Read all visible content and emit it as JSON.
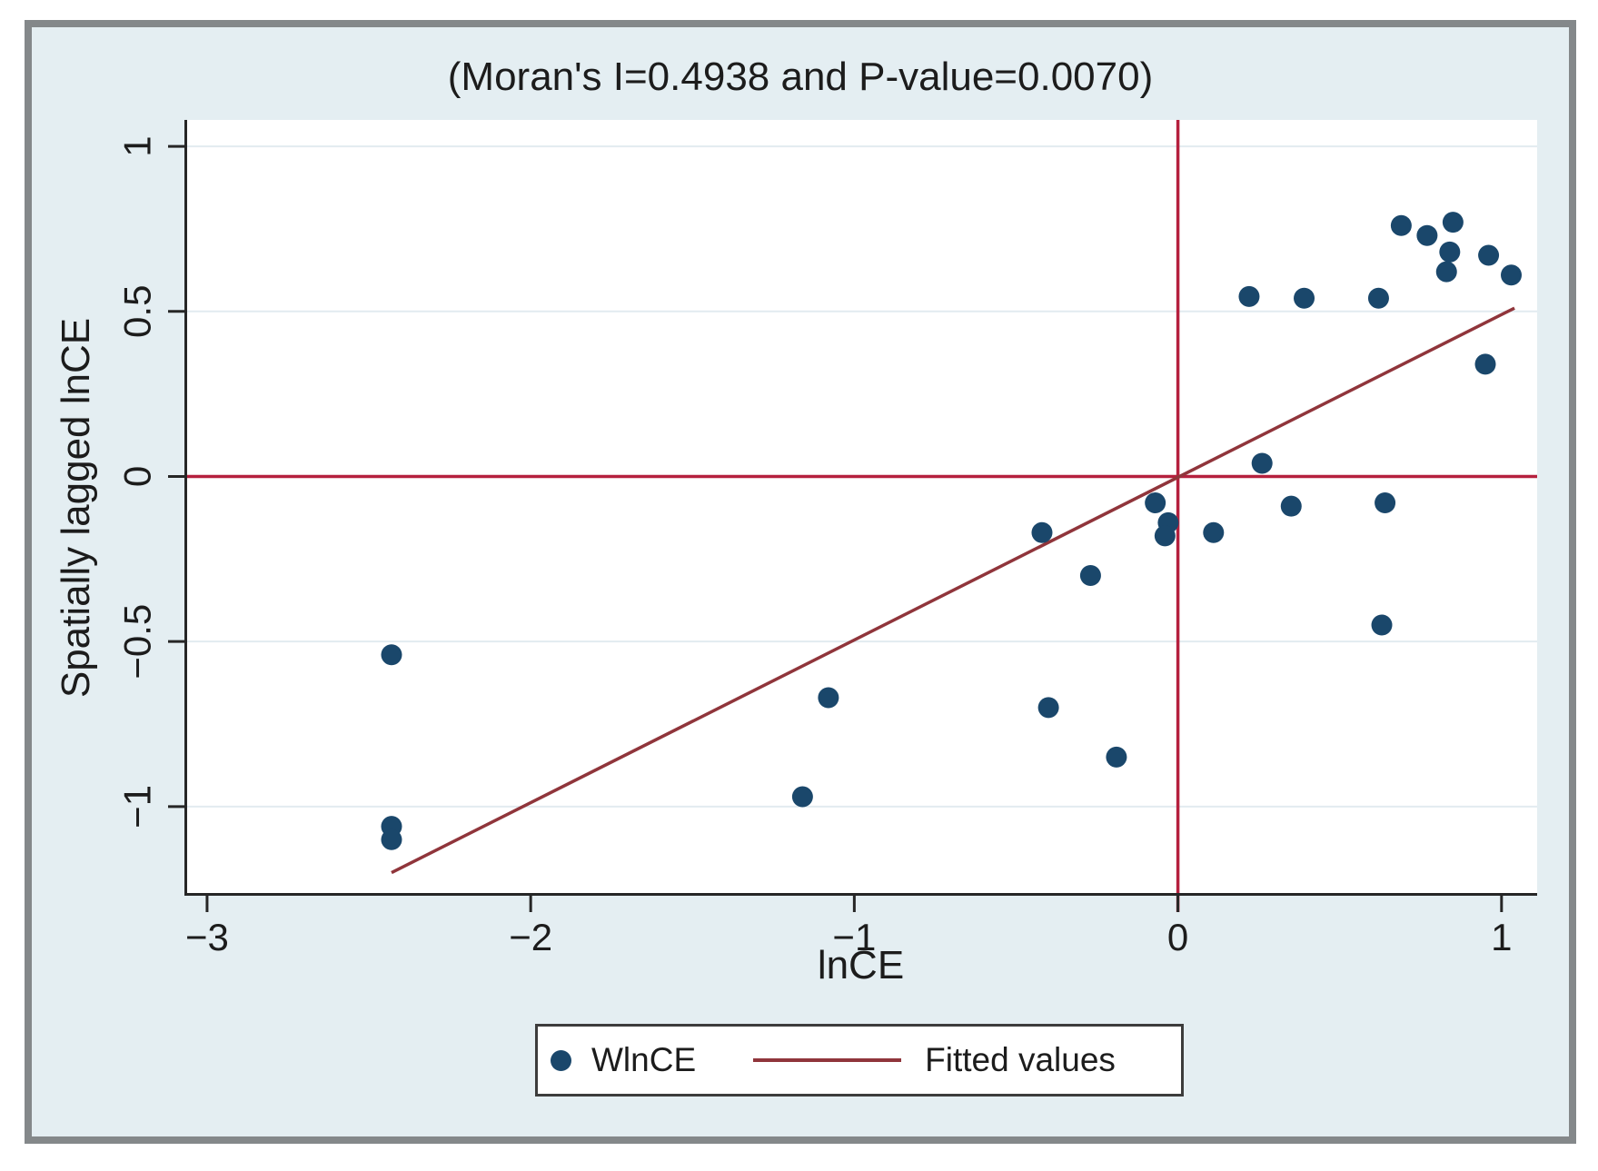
{
  "chart_data": {
    "type": "scatter",
    "title": "(Moran's I=0.4938 and P-value=0.0070)",
    "xlabel": "lnCE",
    "ylabel": "Spatially lagged lnCE",
    "xlim": [
      -3.07,
      1.11
    ],
    "ylim": [
      -1.27,
      1.08
    ],
    "grid": "horizontal-only",
    "xticks": [
      {
        "v": -3,
        "label": "−3"
      },
      {
        "v": -2,
        "label": "−2"
      },
      {
        "v": -1,
        "label": "−1"
      },
      {
        "v": 0,
        "label": "0"
      },
      {
        "v": 1,
        "label": "1"
      }
    ],
    "yticks": [
      {
        "v": -1,
        "label": "−1"
      },
      {
        "v": -0.5,
        "label": "−0.5"
      },
      {
        "v": 0,
        "label": "0"
      },
      {
        "v": 0.5,
        "label": "0.5"
      },
      {
        "v": 1,
        "label": "1"
      }
    ],
    "series": [
      {
        "name": "WlnCE",
        "marker": "filled-circle",
        "points": [
          [
            0.69,
            0.76
          ],
          [
            0.77,
            0.73
          ],
          [
            0.85,
            0.77
          ],
          [
            0.84,
            0.68
          ],
          [
            0.83,
            0.62
          ],
          [
            0.96,
            0.67
          ],
          [
            1.03,
            0.61
          ],
          [
            0.22,
            0.545
          ],
          [
            0.39,
            0.54
          ],
          [
            0.62,
            0.54
          ],
          [
            0.95,
            0.34
          ],
          [
            0.26,
            0.04
          ],
          [
            -0.07,
            -0.08
          ],
          [
            -0.03,
            -0.14
          ],
          [
            -0.04,
            -0.18
          ],
          [
            0.11,
            -0.17
          ],
          [
            0.35,
            -0.09
          ],
          [
            0.64,
            -0.08
          ],
          [
            -0.42,
            -0.17
          ],
          [
            -0.27,
            -0.3
          ],
          [
            0.63,
            -0.45
          ],
          [
            -0.4,
            -0.7
          ],
          [
            -0.19,
            -0.85
          ],
          [
            -1.08,
            -0.67
          ],
          [
            -1.16,
            -0.97
          ],
          [
            -2.43,
            -0.54
          ],
          [
            -2.43,
            -1.06
          ],
          [
            -2.43,
            -1.1
          ]
        ]
      }
    ],
    "fitted_line": {
      "name": "Fitted values",
      "x": [
        -2.43,
        1.04
      ],
      "y": [
        -1.2,
        0.51
      ],
      "slope": 0.4938,
      "intercept": 0
    },
    "reference_lines": {
      "vertical_x": 0,
      "horizontal_y": 0
    },
    "stats": {
      "morans_i": "0.4938",
      "p_value": "0.0070"
    },
    "legend": {
      "position": "bottom-center",
      "entries": [
        {
          "label": "WlnCE",
          "marker": "dot"
        },
        {
          "label": "Fitted values",
          "marker": "line"
        }
      ]
    },
    "colors": {
      "marker": "#1a476b",
      "fitted": "#90353b",
      "refline": "#b5203e",
      "grid": "#e2ebf0",
      "axis": "#262626",
      "text": "#1c1c1c",
      "plot_bg": "#ffffff",
      "panel_bg": "#e4eef2",
      "frame_border": "#84888a"
    }
  }
}
